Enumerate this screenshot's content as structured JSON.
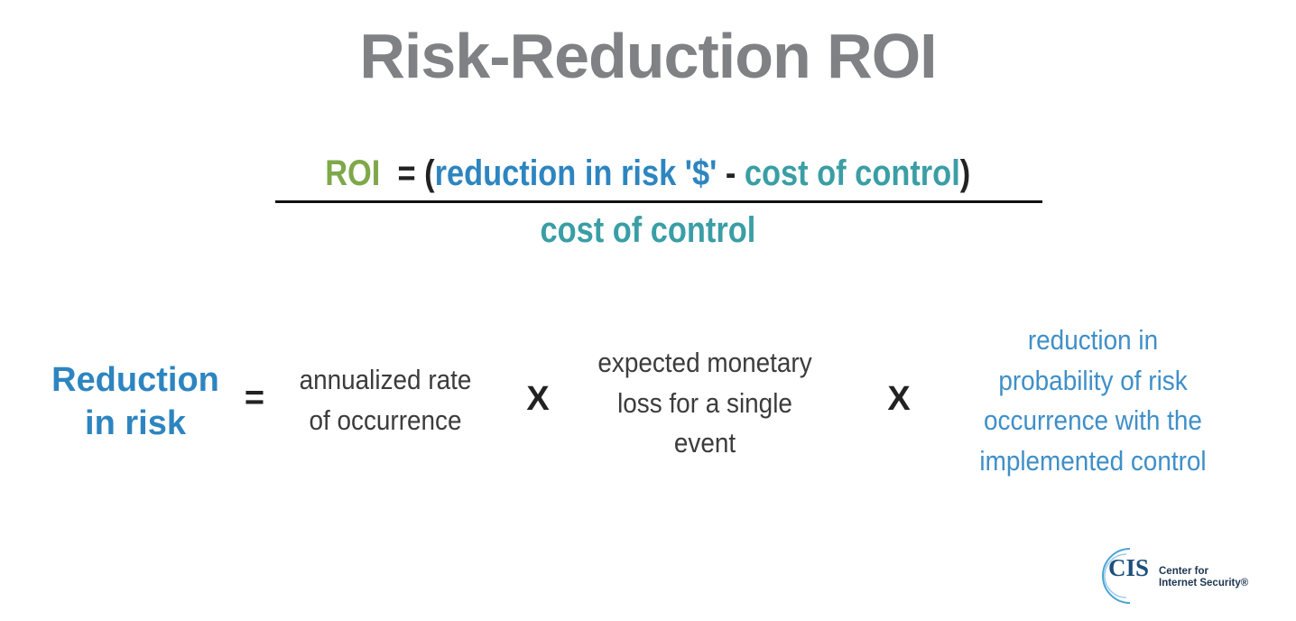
{
  "title": "Risk-Reduction ROI",
  "formula": {
    "lhs": "ROI",
    "equals": "=",
    "open": "(",
    "term1": "reduction in risk '$'",
    "minus": "-",
    "term2": "cost of control",
    "close": ")",
    "denominator": "cost of control"
  },
  "equation": {
    "lhs": [
      "Reduction",
      "in risk"
    ],
    "equals": "=",
    "factors": [
      {
        "lines": [
          "annualized rate",
          "of occurrence"
        ]
      },
      {
        "lines": [
          "expected monetary",
          "loss for a single",
          "event"
        ]
      },
      {
        "lines": [
          "reduction in",
          "probability of risk",
          "occurrence with the",
          "implemented control"
        ]
      }
    ],
    "operators": [
      "X",
      "X"
    ]
  },
  "logo": {
    "mark": "CIS",
    "name": [
      "Center for",
      "Internet Security®"
    ]
  }
}
